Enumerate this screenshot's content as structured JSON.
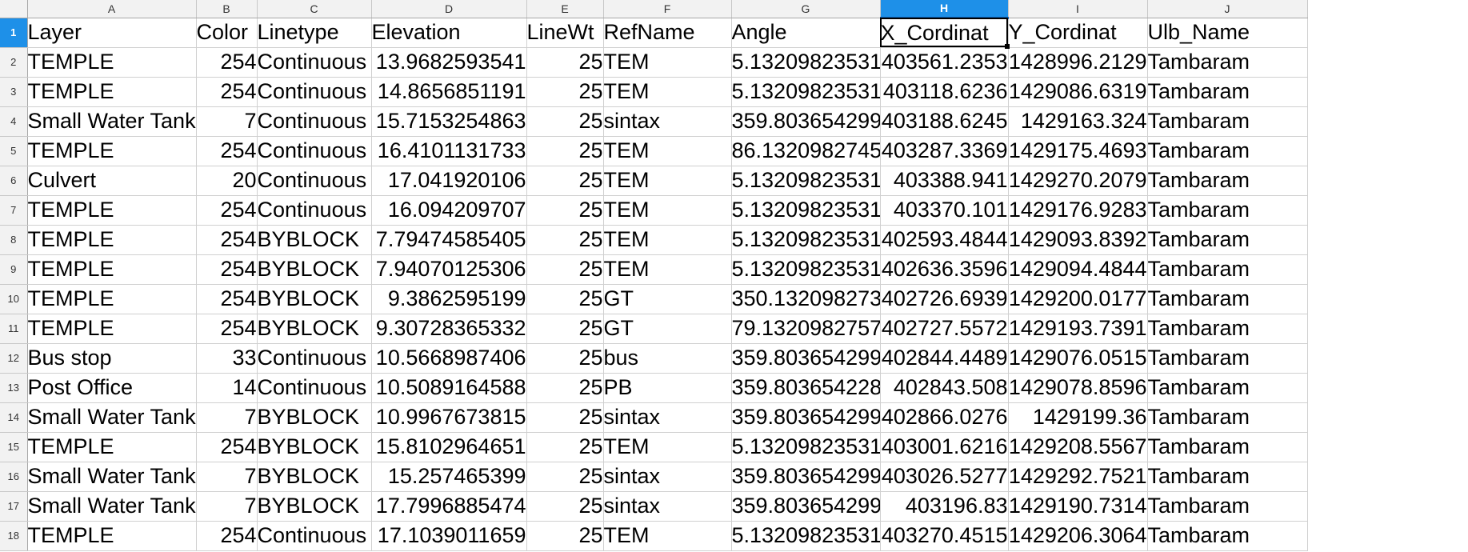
{
  "sheet": {
    "columns": [
      "A",
      "B",
      "C",
      "D",
      "E",
      "F",
      "G",
      "H",
      "I",
      "J"
    ],
    "active_column": "H",
    "active_row": "1",
    "headers": [
      "Layer",
      "Color",
      "Linetype",
      "Elevation",
      "LineWt",
      "RefName",
      "Angle",
      "X_Cordinat",
      "Y_Cordinat",
      "Ulb_Name"
    ],
    "numeric_columns": [
      false,
      true,
      false,
      true,
      true,
      false,
      true,
      true,
      true,
      false
    ],
    "rows": [
      {
        "n": "2",
        "c": [
          "TEMPLE",
          "254",
          "Continuous",
          "13.9682593541",
          "25",
          "TEM",
          "5.13209823531",
          "403561.2353",
          "1428996.2129",
          "Tambaram"
        ]
      },
      {
        "n": "3",
        "c": [
          "TEMPLE",
          "254",
          "Continuous",
          "14.8656851191",
          "25",
          "TEM",
          "5.13209823531",
          "403118.6236",
          "1429086.6319",
          "Tambaram"
        ]
      },
      {
        "n": "4",
        "c": [
          "Small Water Tank",
          "7",
          "Continuous",
          "15.7153254863",
          "25",
          "sintax",
          "359.803654299",
          "403188.6245",
          "1429163.324",
          "Tambaram"
        ]
      },
      {
        "n": "5",
        "c": [
          "TEMPLE",
          "254",
          "Continuous",
          "16.4101131733",
          "25",
          "TEM",
          "86.1320982745",
          "403287.3369",
          "1429175.4693",
          "Tambaram"
        ]
      },
      {
        "n": "6",
        "c": [
          "Culvert",
          "20",
          "Continuous",
          "17.041920106",
          "25",
          "TEM",
          "5.13209823531",
          "403388.941",
          "1429270.2079",
          "Tambaram"
        ]
      },
      {
        "n": "7",
        "c": [
          "TEMPLE",
          "254",
          "Continuous",
          "16.094209707",
          "25",
          "TEM",
          "5.13209823531",
          "403370.101",
          "1429176.9283",
          "Tambaram"
        ]
      },
      {
        "n": "8",
        "c": [
          "TEMPLE",
          "254",
          "BYBLOCK",
          "7.79474585405",
          "25",
          "TEM",
          "5.13209823531",
          "402593.4844",
          "1429093.8392",
          "Tambaram"
        ]
      },
      {
        "n": "9",
        "c": [
          "TEMPLE",
          "254",
          "BYBLOCK",
          "7.94070125306",
          "25",
          "TEM",
          "5.13209823531",
          "402636.3596",
          "1429094.4844",
          "Tambaram"
        ]
      },
      {
        "n": "10",
        "c": [
          "TEMPLE",
          "254",
          "BYBLOCK",
          "9.3862595199",
          "25",
          "GT",
          "350.132098273",
          "402726.6939",
          "1429200.0177",
          "Tambaram"
        ]
      },
      {
        "n": "11",
        "c": [
          "TEMPLE",
          "254",
          "BYBLOCK",
          "9.30728365332",
          "25",
          "GT",
          "79.1320982757",
          "402727.5572",
          "1429193.7391",
          "Tambaram"
        ]
      },
      {
        "n": "12",
        "c": [
          "Bus stop",
          "33",
          "Continuous",
          "10.5668987406",
          "25",
          "bus",
          "359.803654299",
          "402844.4489",
          "1429076.0515",
          "Tambaram"
        ]
      },
      {
        "n": "13",
        "c": [
          "Post Office",
          "14",
          "Continuous",
          "10.5089164588",
          "25",
          "PB",
          "359.803654228",
          "402843.508",
          "1429078.8596",
          "Tambaram"
        ]
      },
      {
        "n": "14",
        "c": [
          "Small Water Tank",
          "7",
          "BYBLOCK",
          "10.9967673815",
          "25",
          "sintax",
          "359.803654299",
          "402866.0276",
          "1429199.36",
          "Tambaram"
        ]
      },
      {
        "n": "15",
        "c": [
          "TEMPLE",
          "254",
          "BYBLOCK",
          "15.8102964651",
          "25",
          "TEM",
          "5.13209823531",
          "403001.6216",
          "1429208.5567",
          "Tambaram"
        ]
      },
      {
        "n": "16",
        "c": [
          "Small Water Tank",
          "7",
          "BYBLOCK",
          "15.257465399",
          "25",
          "sintax",
          "359.803654299",
          "403026.5277",
          "1429292.7521",
          "Tambaram"
        ]
      },
      {
        "n": "17",
        "c": [
          "Small Water Tank",
          "7",
          "BYBLOCK",
          "17.7996885474",
          "25",
          "sintax",
          "359.803654299",
          "403196.83",
          "1429190.7314",
          "Tambaram"
        ]
      },
      {
        "n": "18",
        "c": [
          "TEMPLE",
          "254",
          "Continuous",
          "17.1039011659",
          "25",
          "TEM",
          "5.13209823531",
          "403270.4515",
          "1429206.3064",
          "Tambaram"
        ]
      }
    ]
  }
}
